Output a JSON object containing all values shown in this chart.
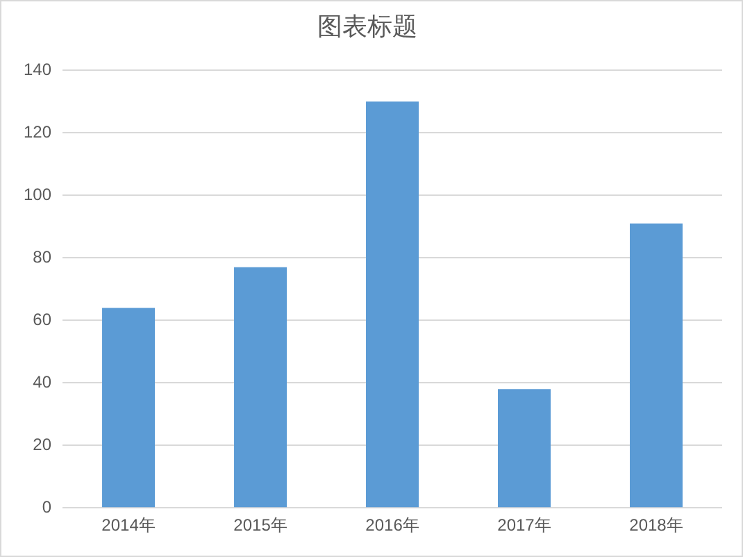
{
  "chart_data": {
    "type": "bar",
    "title": "图表标题",
    "categories": [
      "2014年",
      "2015年",
      "2016年",
      "2017年",
      "2018年"
    ],
    "values": [
      64,
      77,
      130,
      38,
      91
    ],
    "color": "#5b9bd5",
    "ylim": [
      0,
      140
    ],
    "yticks": [
      0,
      20,
      40,
      60,
      80,
      100,
      120,
      140
    ],
    "grid": "y"
  }
}
